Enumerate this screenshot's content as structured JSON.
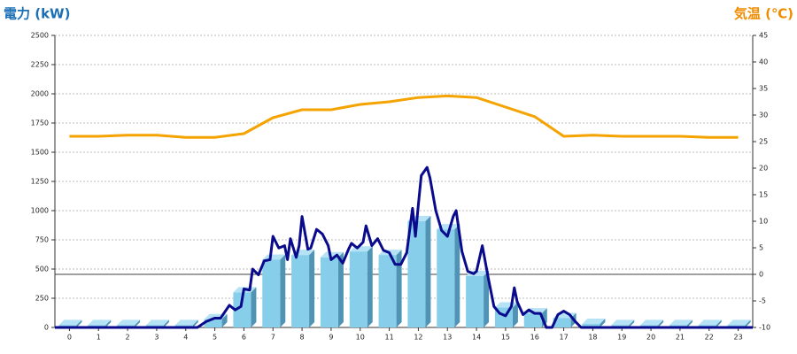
{
  "chart_data": {
    "type": "combo",
    "y_label": "電力 (kW)",
    "y2_label": "気温 (℃)",
    "xlim": [
      -0.5,
      23.5
    ],
    "xticks": [
      0,
      1,
      2,
      3,
      4,
      5,
      6,
      7,
      8,
      9,
      10,
      11,
      12,
      13,
      14,
      15,
      16,
      17,
      18,
      19,
      20,
      21,
      22,
      23
    ],
    "ylim": [
      0,
      2500
    ],
    "yticks": [
      0,
      250,
      500,
      750,
      1000,
      1250,
      1500,
      1750,
      2000,
      2250,
      2500
    ],
    "y2lim": [
      -10,
      45
    ],
    "y2ticks": [
      -10,
      -5,
      0,
      5,
      10,
      15,
      20,
      25,
      30,
      35,
      40,
      45
    ],
    "grid": true,
    "series": [
      {
        "type": "bar",
        "color": "#87ceeb",
        "x": [
          0,
          1,
          2,
          3,
          4,
          5,
          6,
          7,
          8,
          9,
          10,
          11,
          12,
          13,
          14,
          15,
          16,
          17,
          18,
          19,
          20,
          21,
          22,
          23
        ],
        "values": [
          20,
          20,
          20,
          20,
          20,
          70,
          300,
          580,
          620,
          600,
          650,
          620,
          910,
          840,
          440,
          170,
          120,
          80,
          30,
          20,
          20,
          20,
          20,
          20
        ]
      },
      {
        "type": "line",
        "color": "#0a0a8c",
        "x": [
          -0.5,
          4.4,
          4.7,
          5.0,
          5.2,
          5.5,
          5.7,
          5.9,
          6.0,
          6.2,
          6.3,
          6.5,
          6.7,
          6.9,
          7.0,
          7.2,
          7.4,
          7.5,
          7.6,
          7.8,
          7.9,
          8.0,
          8.2,
          8.3,
          8.5,
          8.7,
          8.9,
          9.0,
          9.2,
          9.4,
          9.6,
          9.7,
          9.9,
          10.1,
          10.2,
          10.4,
          10.6,
          10.8,
          11.0,
          11.2,
          11.4,
          11.6,
          11.8,
          11.9,
          12.0,
          12.1,
          12.3,
          12.4,
          12.6,
          12.8,
          13.0,
          13.2,
          13.3,
          13.5,
          13.7,
          13.9,
          14.0,
          14.2,
          14.4,
          14.6,
          14.8,
          15.0,
          15.2,
          15.3,
          15.4,
          15.6,
          15.8,
          16.0,
          16.2,
          16.4,
          16.6,
          16.8,
          17.0,
          17.2,
          17.4,
          17.6,
          23.5
        ],
        "values": [
          0,
          0,
          50,
          80,
          80,
          190,
          150,
          180,
          330,
          320,
          500,
          450,
          570,
          580,
          780,
          680,
          700,
          580,
          760,
          600,
          700,
          950,
          670,
          680,
          840,
          800,
          700,
          580,
          620,
          550,
          670,
          720,
          680,
          730,
          870,
          700,
          760,
          660,
          640,
          540,
          540,
          640,
          1020,
          780,
          1050,
          1300,
          1370,
          1280,
          1000,
          830,
          780,
          950,
          1000,
          650,
          480,
          460,
          480,
          700,
          430,
          180,
          120,
          100,
          180,
          340,
          220,
          110,
          150,
          120,
          120,
          0,
          0,
          110,
          140,
          110,
          50,
          0,
          0
        ]
      },
      {
        "type": "line",
        "axis": "y2",
        "color": "#f5a300",
        "x": [
          0,
          1,
          2,
          3,
          4,
          5,
          6,
          7,
          8,
          9,
          10,
          11,
          12,
          13,
          14,
          15,
          16,
          17,
          18,
          19,
          20,
          21,
          22,
          23
        ],
        "values": [
          26,
          26,
          26.2,
          26.2,
          25.8,
          25.8,
          26.5,
          29.5,
          31,
          31,
          32,
          32.5,
          33.3,
          33.6,
          33.3,
          31.5,
          29.7,
          26,
          26.2,
          26,
          26,
          26,
          25.8,
          25.8
        ]
      }
    ]
  }
}
